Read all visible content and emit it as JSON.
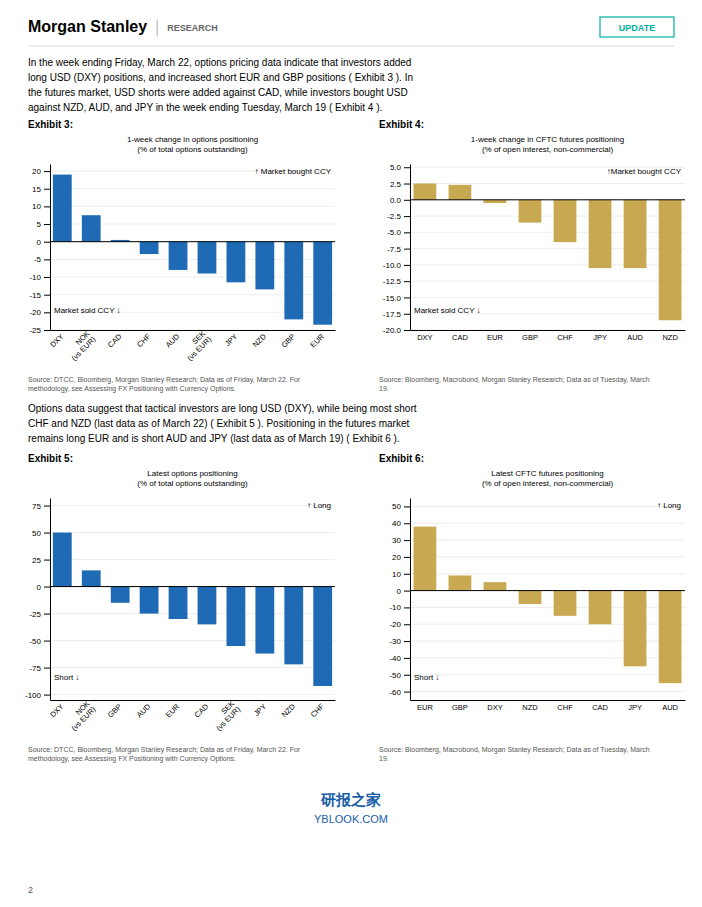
{
  "header": {
    "title": "Morgan Stanley",
    "subtitle": "RESEARCH",
    "badge": "UPDATE",
    "color": "#00b0a0"
  },
  "body_text": [
    [
      "In the week ending Friday, March 22, options pricing data indicate that investors added",
      "long USD (DXY) positions, and increased short EUR and GBP positions ( Exhibit 3 ). In",
      "the futures market, USD shorts were added against CAD, while investors bought USD",
      "against NZD, AUD, and JPY in the week ending Tuesday, March 19 ( Exhibit 4 )."
    ],
    [
      "Options data suggest that tactical investors are long USD (DXY), while being most short",
      "CHF and NZD (last data as of March 22) ( Exhibit 5 ). Positioning in the futures market",
      "remains long EUR and is short AUD and JPY (last data as of March 19) ( Exhibit 6 )."
    ]
  ],
  "chart_data": [
    {
      "type": "bar",
      "title": "Exhibit 3:",
      "subtitle": [
        "1-week change in options positioning",
        "(% of total options outstanding)"
      ],
      "categories": [
        "DXY",
        "NOK\n(vs EUR)",
        "CAD",
        "CHF",
        "AUD",
        "SEK\n(vs EUR)",
        "JPY",
        "NZD",
        "GBP",
        "EUR"
      ],
      "values": [
        19.0,
        7.5,
        0.5,
        -3.5,
        -8.0,
        -9.0,
        -11.5,
        -13.5,
        -22.0,
        -23.5
      ],
      "color": "#1f6ab5",
      "ylim": [
        -25,
        22
      ],
      "yticks": [
        20,
        15,
        10,
        5,
        0,
        -5,
        -10,
        -15,
        -20,
        -25
      ],
      "grid": true,
      "annotations": [
        "↑ Market bought CCY",
        "Market sold CCY ↓"
      ],
      "source": [
        "Source: DTCC, Bloomberg, Morgan Stanley Research; Data as of Friday, March 22. For",
        "methodology, see Assessing FX Positioning with Currency Options."
      ]
    },
    {
      "type": "bar",
      "title": "Exhibit 4:",
      "subtitle": [
        "1-week change in CFTC futures positioning",
        "(% of open interest, non-commercial)"
      ],
      "categories": [
        "DXY",
        "CAD",
        "EUR",
        "GBP",
        "CHF",
        "JPY",
        "AUD",
        "NZD"
      ],
      "values": [
        2.5,
        2.3,
        -0.5,
        -3.5,
        -6.5,
        -10.5,
        -10.5,
        -18.5
      ],
      "color": "#c8a951",
      "ylim": [
        -20,
        5.5
      ],
      "yticks": [
        {
          "value": 5,
          "label": "5.0"
        },
        2.5,
        {
          "value": 0,
          "label": "0.0"
        },
        -2.5,
        {
          "value": -5,
          "label": "-5.0"
        },
        -7.5,
        {
          "value": -10,
          "label": "-10.0"
        },
        -12.5,
        {
          "value": -15,
          "label": "-15.0"
        },
        -17.5,
        {
          "value": -20,
          "label": "-20.0"
        }
      ],
      "grid": true,
      "annotations": [
        "↑Market bought CCY",
        "Market sold CCY ↓"
      ],
      "source": [
        "Source: Bloomberg, Macrobond, Morgan Stanley Research; Data as of Tuesday, March",
        "19."
      ]
    },
    {
      "type": "bar",
      "title": "Exhibit 5:",
      "subtitle": [
        "Latest options positioning",
        "(% of total options outstanding)"
      ],
      "categories": [
        "DXY",
        "NOK\n(vs EUR)",
        "GBP",
        "AUD",
        "EUR",
        "CAD",
        "SEK\n(vs EUR)",
        "JPY",
        "NZD",
        "CHF"
      ],
      "values": [
        50,
        15,
        -15,
        -25,
        -30,
        -35,
        -55,
        -62,
        -72,
        -92
      ],
      "color": "#1f6ab5",
      "ylim": [
        -105,
        82
      ],
      "yticks": [
        75,
        50,
        25,
        0,
        -25,
        -50,
        -75,
        -100
      ],
      "grid": true,
      "annotations": [
        "↑ Long",
        "Short ↓"
      ],
      "source": [
        "Source: DTCC, Bloomberg, Morgan Stanley Research; Data as of Friday, March 22. For",
        "methodology, see Assessing FX Positioning with Currency Options."
      ]
    },
    {
      "type": "bar",
      "title": "Exhibit 6:",
      "subtitle": [
        "Latest CFTC futures positioning",
        "(% of open interest, non-commercial)"
      ],
      "categories": [
        "EUR",
        "GBP",
        "DXY",
        "NZD",
        "CHF",
        "CAD",
        "JPY",
        "AUD"
      ],
      "values": [
        38,
        9,
        5,
        -8,
        -15,
        -20,
        -45,
        -55
      ],
      "color": "#c8a951",
      "ylim": [
        -65,
        55
      ],
      "yticks": [
        50,
        40,
        30,
        20,
        10,
        0,
        -10,
        -20,
        -30,
        -40,
        -50,
        -60
      ],
      "grid": true,
      "annotations": [
        "↑ Long",
        "Short ↓"
      ],
      "source": [
        "Source: Bloomberg, Macrobond, Morgan Stanley Research; Data as of Tuesday, March",
        "19."
      ]
    }
  ],
  "watermark": [
    "研报之家",
    "YBLOOK.COM"
  ],
  "page_number": "2"
}
